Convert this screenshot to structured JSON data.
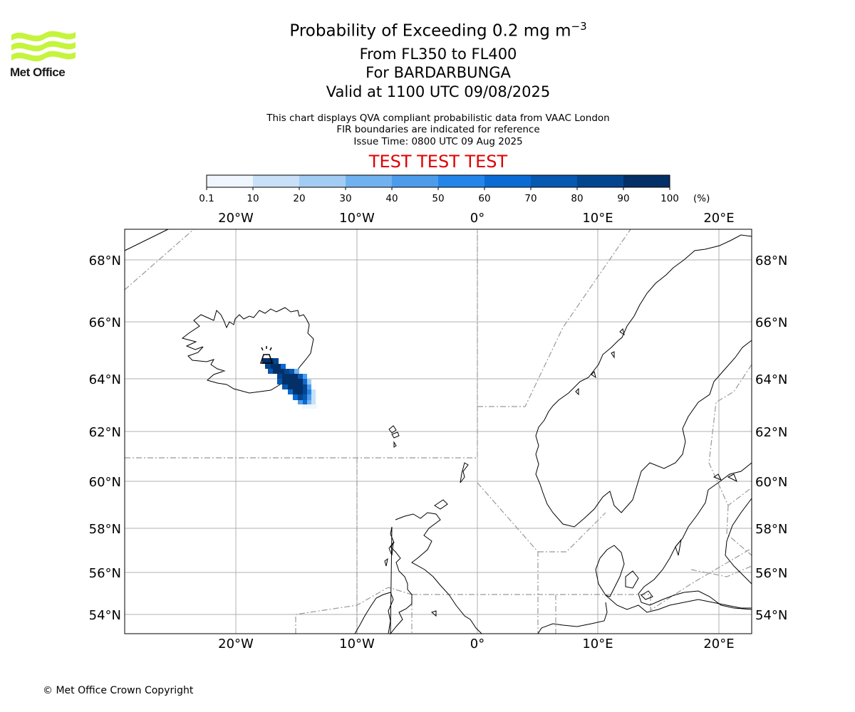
{
  "header": {
    "logo_text": "Met Office",
    "title": "Probability of Exceeding 0.2 mg m",
    "title_exponent": "−3",
    "level_range": "From FL350 to FL400",
    "volcano": "For BARDARBUNGA",
    "valid_time": "Valid at 1100 UTC 09/08/2025",
    "note_1": "This chart displays QVA compliant probabilistic data from VAAC London",
    "note_2": "FIR boundaries are indicated for reference",
    "issue_time": "Issue Time: 0800 UTC 09 Aug 2025",
    "test_banner": "TEST TEST TEST"
  },
  "colorbar": {
    "ticks": [
      "0.1",
      "10",
      "20",
      "30",
      "40",
      "50",
      "60",
      "70",
      "80",
      "90",
      "100"
    ],
    "unit": "(%)",
    "colors": [
      "#eff6fe",
      "#c8e0f8",
      "#a3ccf4",
      "#70b2ef",
      "#4d9cec",
      "#2385ea",
      "#0a6bd4",
      "#0758b0",
      "#044590",
      "#043068"
    ]
  },
  "map": {
    "lon_labels": [
      "20°W",
      "10°W",
      "0°",
      "10°E",
      "20°E"
    ],
    "lat_labels": [
      "68°N",
      "66°N",
      "64°N",
      "62°N",
      "60°N",
      "58°N",
      "56°N",
      "54°N"
    ],
    "volcano_marker": "volcano-icon"
  },
  "footer": {
    "copyright": "© Met Office Crown Copyright"
  }
}
